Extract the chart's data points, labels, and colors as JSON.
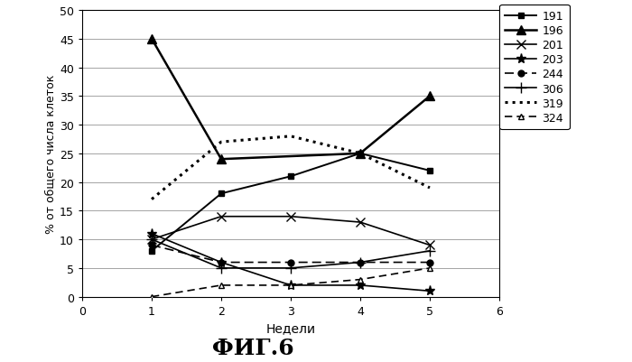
{
  "weeks": [
    1,
    2,
    3,
    4,
    5
  ],
  "series_order": [
    "191",
    "196",
    "201",
    "203",
    "244",
    "306",
    "319",
    "324"
  ],
  "series": {
    "191": {
      "values": [
        8,
        18,
        21,
        25,
        22
      ]
    },
    "196": {
      "values": [
        45,
        24,
        null,
        25,
        35
      ]
    },
    "201": {
      "values": [
        10,
        14,
        14,
        13,
        9
      ]
    },
    "203": {
      "values": [
        11,
        6,
        2,
        2,
        1
      ]
    },
    "244": {
      "values": [
        9,
        6,
        6,
        6,
        6
      ]
    },
    "306": {
      "values": [
        10,
        5,
        5,
        6,
        8
      ]
    },
    "319": {
      "values": [
        17,
        27,
        28,
        25,
        19
      ]
    },
    "324": {
      "values": [
        0,
        2,
        2,
        3,
        5
      ]
    }
  },
  "xlim": [
    0,
    6
  ],
  "ylim": [
    0,
    50
  ],
  "xticks": [
    0,
    1,
    2,
    3,
    4,
    5,
    6
  ],
  "yticks": [
    0,
    5,
    10,
    15,
    20,
    25,
    30,
    35,
    40,
    45,
    50
  ],
  "xlabel": "Недели",
  "ylabel": "% от общего числа клеток",
  "figure_title": "ФИГ.6",
  "background_color": "#ffffff"
}
